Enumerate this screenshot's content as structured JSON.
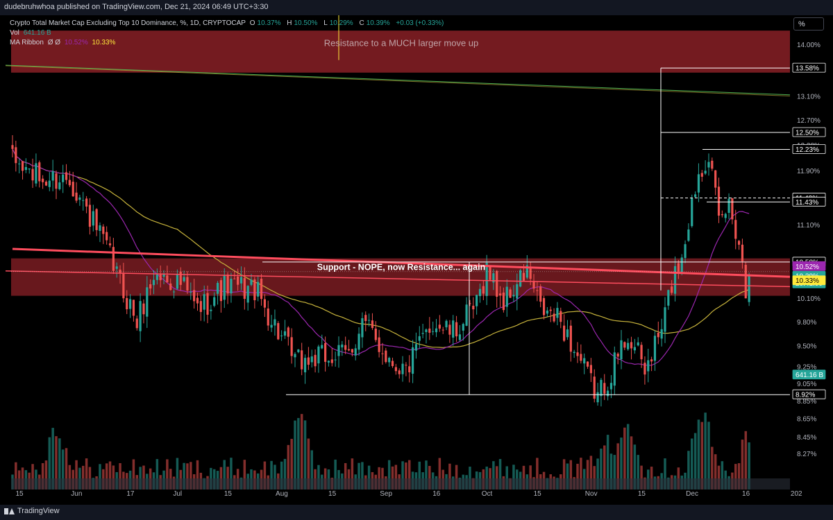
{
  "header": {
    "published": "dudebruhwhoa published on TradingView.com, Dec 21, 2024 06:49 UTC+3:30",
    "symbol_title": "Crypto Total Market Cap Excluding Top 10 Dominance, %, 1D, CRYPTOCAP",
    "ohlc": {
      "o_label": "O",
      "o": "10.37%",
      "h_label": "H",
      "h": "10.50%",
      "l_label": "L",
      "l": "10.29%",
      "c_label": "C",
      "c": "10.39%",
      "change": "+0.03 (+0.33%)"
    },
    "vol_label": "Vol",
    "vol_value": "641.16 B",
    "ribbon_label": "MA Ribbon",
    "ribbon_settings": "Ø Ø",
    "ribbon_value1": "10.52%",
    "ribbon_value2": "10.33%"
  },
  "scale_button": "%",
  "footer": {
    "brand": "TradingView"
  },
  "colors": {
    "up": "#26a69a",
    "down": "#ef5350",
    "ma_purple": "#9c27b0",
    "ma_yellow": "#c8b43c",
    "zone": "#7a1c22",
    "trendline": "#ff4d5e",
    "green_line": "#4caf50"
  },
  "chart_data": {
    "type": "candlestick",
    "title": "Crypto Total Market Cap Excluding Top 10 Dominance, %, 1D, CRYPTOCAP",
    "ylim": [
      8.12,
      14.33
    ],
    "y_scale": "log",
    "y_ticks": [
      "14.00%",
      "13.58%",
      "13.10%",
      "12.70%",
      "12.50%",
      "12.30%",
      "12.23%",
      "11.90%",
      "11.49%",
      "11.43%",
      "11.10%",
      "10.58%",
      "10.52%",
      "10.39%",
      "10.33%",
      "10.10%",
      "9.80%",
      "9.50%",
      "9.25%",
      "9.05%",
      "8.92%",
      "8.85%",
      "8.65%",
      "8.45%",
      "8.27%"
    ],
    "y_ticks_plain": [
      {
        "label": "14.00%",
        "v": 14.0
      },
      {
        "label": "13.10%",
        "v": 13.1
      },
      {
        "label": "12.70%",
        "v": 12.7
      },
      {
        "label": "12.30%",
        "v": 12.3
      },
      {
        "label": "11.90%",
        "v": 11.9
      },
      {
        "label": "11.10%",
        "v": 11.1
      },
      {
        "label": "10.10%",
        "v": 10.1
      },
      {
        "label": "9.80%",
        "v": 9.8
      },
      {
        "label": "9.50%",
        "v": 9.5
      },
      {
        "label": "9.25%",
        "v": 9.25
      },
      {
        "label": "9.05%",
        "v": 9.05
      },
      {
        "label": "8.85%",
        "v": 8.85
      },
      {
        "label": "8.65%",
        "v": 8.65
      },
      {
        "label": "8.45%",
        "v": 8.45
      },
      {
        "label": "8.27%",
        "v": 8.27
      }
    ],
    "y_boxed_labels": [
      {
        "label": "13.58%",
        "v": 13.58,
        "style": "white"
      },
      {
        "label": "12.50%",
        "v": 12.5,
        "style": "white"
      },
      {
        "label": "12.23%",
        "v": 12.23,
        "style": "white"
      },
      {
        "label": "11.49%",
        "v": 11.49,
        "style": "white"
      },
      {
        "label": "11.43%",
        "v": 11.43,
        "style": "white"
      },
      {
        "label": "10.58%",
        "v": 10.58,
        "style": "white"
      },
      {
        "label": "10.52%",
        "v": 10.52,
        "style": "purple"
      },
      {
        "label": "10.39%",
        "sublabel": "20:41:00",
        "v": 10.39,
        "style": "teal"
      },
      {
        "label": "10.33%",
        "v": 10.33,
        "style": "yellow"
      },
      {
        "label": "641.16 B",
        "v": 9.15,
        "style": "teal"
      },
      {
        "label": "8.92%",
        "v": 8.92,
        "style": "white"
      }
    ],
    "x_ticks": [
      "15",
      "Jun",
      "17",
      "Jul",
      "15",
      "Aug",
      "15",
      "Sep",
      "16",
      "Oct",
      "15",
      "Nov",
      "15",
      "Dec",
      "16",
      "202"
    ],
    "x_tick_days": [
      0,
      17,
      33,
      47,
      62,
      78,
      93,
      109,
      124,
      139,
      154,
      170,
      185,
      200,
      216,
      231
    ],
    "n_bars": 220,
    "annotations": {
      "resistance_zone": {
        "label": "Resistance to a MUCH larger move up",
        "top": 14.25,
        "bottom": 13.5
      },
      "support_zone": {
        "label": "Support - NOPE, now Resistance... again",
        "top": 10.63,
        "bottom": 10.13
      },
      "trendline": {
        "from": [
          0,
          10.76
        ],
        "to": [
          231,
          10.38
        ]
      },
      "levels": [
        13.58,
        12.5,
        12.23,
        11.49,
        11.43,
        10.58,
        8.92
      ]
    },
    "key_points": [
      {
        "day": 0,
        "v": 12.05
      },
      {
        "day": 9,
        "v": 11.75
      },
      {
        "day": 17,
        "v": 11.8
      },
      {
        "day": 21,
        "v": 11.4
      },
      {
        "day": 28,
        "v": 10.75
      },
      {
        "day": 33,
        "v": 10.2
      },
      {
        "day": 37,
        "v": 9.8
      },
      {
        "day": 42,
        "v": 10.4
      },
      {
        "day": 50,
        "v": 10.3
      },
      {
        "day": 55,
        "v": 9.95
      },
      {
        "day": 63,
        "v": 10.25
      },
      {
        "day": 72,
        "v": 10.22
      },
      {
        "day": 80,
        "v": 9.6
      },
      {
        "day": 84,
        "v": 9.3
      },
      {
        "day": 92,
        "v": 9.35
      },
      {
        "day": 100,
        "v": 9.4
      },
      {
        "day": 104,
        "v": 9.8
      },
      {
        "day": 112,
        "v": 9.35
      },
      {
        "day": 117,
        "v": 9.2
      },
      {
        "day": 125,
        "v": 9.8
      },
      {
        "day": 131,
        "v": 9.65
      },
      {
        "day": 138,
        "v": 10.0
      },
      {
        "day": 141,
        "v": 10.5
      },
      {
        "day": 146,
        "v": 10.05
      },
      {
        "day": 153,
        "v": 10.45
      },
      {
        "day": 157,
        "v": 9.95
      },
      {
        "day": 163,
        "v": 9.8
      },
      {
        "day": 167,
        "v": 9.45
      },
      {
        "day": 174,
        "v": 8.9
      },
      {
        "day": 178,
        "v": 9.2
      },
      {
        "day": 183,
        "v": 9.65
      },
      {
        "day": 188,
        "v": 9.2
      },
      {
        "day": 193,
        "v": 9.7
      },
      {
        "day": 196,
        "v": 10.3
      },
      {
        "day": 199,
        "v": 10.7
      },
      {
        "day": 204,
        "v": 11.9
      },
      {
        "day": 207,
        "v": 12.2
      },
      {
        "day": 210,
        "v": 11.1
      },
      {
        "day": 213,
        "v": 11.4
      },
      {
        "day": 216,
        "v": 10.9
      },
      {
        "day": 218,
        "v": 10.2
      },
      {
        "day": 219,
        "v": 10.39
      }
    ],
    "volume_peaks": [
      {
        "day": 13,
        "v": 0.8
      },
      {
        "day": 85,
        "v": 1.0
      },
      {
        "day": 176,
        "v": 0.6
      },
      {
        "day": 183,
        "v": 0.9
      },
      {
        "day": 205,
        "v": 1.0
      },
      {
        "day": 219,
        "v": 0.7
      }
    ]
  }
}
